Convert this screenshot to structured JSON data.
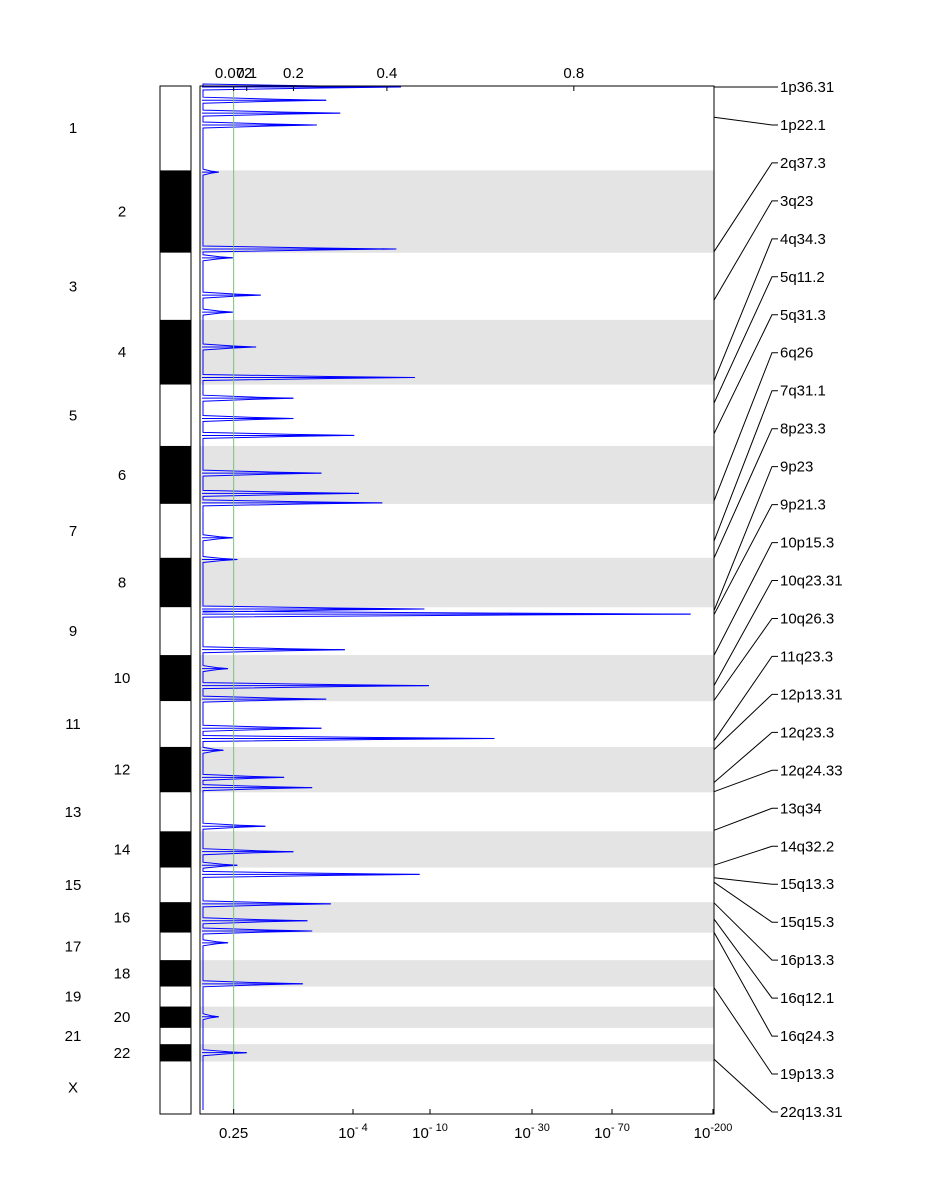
{
  "chart_data": {
    "type": "gistic-amplification-plot",
    "colors": {
      "band": "#e4e4e4",
      "trace": "#0000ff",
      "threshold": "#7fbf7f",
      "ideogram_dark": "#000000"
    },
    "chromosomes": [
      {
        "name": "1",
        "len": 249
      },
      {
        "name": "2",
        "len": 243
      },
      {
        "name": "3",
        "len": 198
      },
      {
        "name": "4",
        "len": 191
      },
      {
        "name": "5",
        "len": 181
      },
      {
        "name": "6",
        "len": 171
      },
      {
        "name": "7",
        "len": 159
      },
      {
        "name": "8",
        "len": 146
      },
      {
        "name": "9",
        "len": 141
      },
      {
        "name": "10",
        "len": 136
      },
      {
        "name": "11",
        "len": 135
      },
      {
        "name": "12",
        "len": 134
      },
      {
        "name": "13",
        "len": 115
      },
      {
        "name": "14",
        "len": 107
      },
      {
        "name": "15",
        "len": 102
      },
      {
        "name": "16",
        "len": 90
      },
      {
        "name": "17",
        "len": 81
      },
      {
        "name": "18",
        "len": 78
      },
      {
        "name": "19",
        "len": 59
      },
      {
        "name": "20",
        "len": 63
      },
      {
        "name": "21",
        "len": 48
      },
      {
        "name": "22",
        "len": 51
      },
      {
        "name": "X",
        "len": 155
      }
    ],
    "top_axis": {
      "label_kind": "G-score",
      "ticks": [
        {
          "label": "0.072",
          "value": 0.072
        },
        {
          "label": "0.1",
          "value": 0.1
        },
        {
          "label": "0.2",
          "value": 0.2
        },
        {
          "label": "0.4",
          "value": 0.4
        },
        {
          "label": "0.8",
          "value": 0.8
        }
      ],
      "range": [
        0,
        1.1
      ]
    },
    "bottom_axis": {
      "label_kind": "q-value",
      "ticks": [
        {
          "base": "0.25",
          "exp": ""
        },
        {
          "base": "10",
          "exp": "- 4"
        },
        {
          "base": "10",
          "exp": "- 10"
        },
        {
          "base": "10",
          "exp": "- 30"
        },
        {
          "base": "10",
          "exp": "- 70"
        },
        {
          "base": "10",
          "exp": "-200"
        }
      ]
    },
    "threshold": 0.072,
    "peaks": [
      {
        "chr": "1",
        "pos": 3,
        "score": 0.43
      },
      {
        "chr": "1",
        "pos": 42,
        "score": 0.27
      },
      {
        "chr": "1",
        "pos": 80,
        "score": 0.3
      },
      {
        "chr": "1",
        "pos": 115,
        "score": 0.25
      },
      {
        "chr": "2",
        "pos": 5,
        "score": 0.04
      },
      {
        "chr": "2",
        "pos": 232,
        "score": 0.42
      },
      {
        "chr": "3",
        "pos": 15,
        "score": 0.07
      },
      {
        "chr": "3",
        "pos": 125,
        "score": 0.13
      },
      {
        "chr": "3",
        "pos": 175,
        "score": 0.07
      },
      {
        "chr": "4",
        "pos": 80,
        "score": 0.12
      },
      {
        "chr": "4",
        "pos": 170,
        "score": 0.46
      },
      {
        "chr": "5",
        "pos": 40,
        "score": 0.2
      },
      {
        "chr": "5",
        "pos": 100,
        "score": 0.2
      },
      {
        "chr": "5",
        "pos": 150,
        "score": 0.33
      },
      {
        "chr": "6",
        "pos": 80,
        "score": 0.26
      },
      {
        "chr": "6",
        "pos": 140,
        "score": 0.34
      },
      {
        "chr": "6",
        "pos": 168,
        "score": 0.39
      },
      {
        "chr": "7",
        "pos": 100,
        "score": 0.07
      },
      {
        "chr": "8",
        "pos": 5,
        "score": 0.08
      },
      {
        "chr": "9",
        "pos": 5,
        "score": 0.48
      },
      {
        "chr": "9",
        "pos": 20,
        "score": 1.05
      },
      {
        "chr": "9",
        "pos": 125,
        "score": 0.31
      },
      {
        "chr": "10",
        "pos": 40,
        "score": 0.06
      },
      {
        "chr": "10",
        "pos": 90,
        "score": 0.49
      },
      {
        "chr": "10",
        "pos": 130,
        "score": 0.27
      },
      {
        "chr": "11",
        "pos": 80,
        "score": 0.26
      },
      {
        "chr": "11",
        "pos": 110,
        "score": 0.63
      },
      {
        "chr": "12",
        "pos": 10,
        "score": 0.05
      },
      {
        "chr": "12",
        "pos": 90,
        "score": 0.18
      },
      {
        "chr": "12",
        "pos": 120,
        "score": 0.24
      },
      {
        "chr": "13",
        "pos": 100,
        "score": 0.14
      },
      {
        "chr": "14",
        "pos": 60,
        "score": 0.2
      },
      {
        "chr": "14",
        "pos": 100,
        "score": 0.08
      },
      {
        "chr": "15",
        "pos": 20,
        "score": 0.47
      },
      {
        "chr": "16",
        "pos": 5,
        "score": 0.28
      },
      {
        "chr": "16",
        "pos": 55,
        "score": 0.23
      },
      {
        "chr": "16",
        "pos": 85,
        "score": 0.24
      },
      {
        "chr": "17",
        "pos": 30,
        "score": 0.06
      },
      {
        "chr": "18",
        "pos": 70,
        "score": 0.22
      },
      {
        "chr": "20",
        "pos": 30,
        "score": 0.04
      },
      {
        "chr": "22",
        "pos": 25,
        "score": 0.1
      }
    ],
    "cytobands": [
      {
        "label": "1p36.31",
        "chr": "1",
        "pos": 3
      },
      {
        "label": "1p22.1",
        "chr": "1",
        "pos": 92
      },
      {
        "label": "2q37.3",
        "chr": "2",
        "pos": 240
      },
      {
        "label": "3q23",
        "chr": "3",
        "pos": 140
      },
      {
        "label": "4q34.3",
        "chr": "4",
        "pos": 180
      },
      {
        "label": "5q11.2",
        "chr": "5",
        "pos": 55
      },
      {
        "label": "5q31.3",
        "chr": "5",
        "pos": 145
      },
      {
        "label": "6q26",
        "chr": "6",
        "pos": 162
      },
      {
        "label": "7q31.1",
        "chr": "7",
        "pos": 110
      },
      {
        "label": "8p23.3",
        "chr": "8",
        "pos": 1
      },
      {
        "label": "9p23",
        "chr": "9",
        "pos": 10
      },
      {
        "label": "9p21.3",
        "chr": "9",
        "pos": 22
      },
      {
        "label": "10p15.3",
        "chr": "10",
        "pos": 1
      },
      {
        "label": "10q23.31",
        "chr": "10",
        "pos": 90
      },
      {
        "label": "10q26.3",
        "chr": "10",
        "pos": 134
      },
      {
        "label": "11q23.3",
        "chr": "11",
        "pos": 117
      },
      {
        "label": "12p13.31",
        "chr": "12",
        "pos": 8
      },
      {
        "label": "12q23.3",
        "chr": "12",
        "pos": 105
      },
      {
        "label": "12q24.33",
        "chr": "12",
        "pos": 132
      },
      {
        "label": "13q34",
        "chr": "13",
        "pos": 112
      },
      {
        "label": "14q32.2",
        "chr": "14",
        "pos": 100
      },
      {
        "label": "15q13.3",
        "chr": "15",
        "pos": 30
      },
      {
        "label": "15q15.3",
        "chr": "15",
        "pos": 43
      },
      {
        "label": "16p13.3",
        "chr": "16",
        "pos": 2
      },
      {
        "label": "16q12.1",
        "chr": "16",
        "pos": 50
      },
      {
        "label": "16q24.3",
        "chr": "16",
        "pos": 89
      },
      {
        "label": "19p13.3",
        "chr": "19",
        "pos": 3
      },
      {
        "label": "22q13.31",
        "chr": "22",
        "pos": 44
      }
    ]
  }
}
